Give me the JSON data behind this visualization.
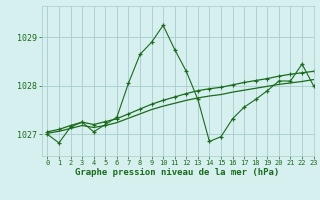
{
  "title": "Graphe pression niveau de la mer (hPa)",
  "bg_color": "#d6f0f0",
  "grid_color": "#a8cccc",
  "line_color": "#1a6b1a",
  "xlim": [
    -0.5,
    23
  ],
  "ylim": [
    1026.55,
    1029.65
  ],
  "yticks": [
    1027,
    1028,
    1029
  ],
  "xticks": [
    0,
    1,
    2,
    3,
    4,
    5,
    6,
    7,
    8,
    9,
    10,
    11,
    12,
    13,
    14,
    15,
    16,
    17,
    18,
    19,
    20,
    21,
    22,
    23
  ],
  "s1_x": [
    0,
    1,
    2,
    3,
    4,
    5,
    6,
    7,
    8,
    9,
    10,
    11,
    12,
    13,
    14,
    15,
    16,
    17,
    18,
    19,
    20,
    21,
    22,
    23
  ],
  "s1_y": [
    1027.0,
    1026.82,
    1027.15,
    1027.25,
    1027.05,
    1027.2,
    1027.35,
    1028.05,
    1028.65,
    1028.9,
    1029.25,
    1028.75,
    1028.3,
    1027.72,
    1026.85,
    1026.95,
    1027.32,
    1027.56,
    1027.72,
    1027.9,
    1028.1,
    1028.1,
    1028.45,
    1028.0
  ],
  "s2_x": [
    0,
    1,
    2,
    3,
    4,
    5,
    6,
    7,
    8,
    9,
    10,
    11,
    12,
    13,
    14,
    15,
    16,
    17,
    18,
    19,
    20,
    21,
    22,
    23
  ],
  "s2_y": [
    1027.05,
    1027.1,
    1027.18,
    1027.25,
    1027.2,
    1027.26,
    1027.32,
    1027.42,
    1027.52,
    1027.62,
    1027.7,
    1027.77,
    1027.84,
    1027.9,
    1027.94,
    1027.97,
    1028.02,
    1028.07,
    1028.11,
    1028.15,
    1028.2,
    1028.24,
    1028.27,
    1028.3
  ],
  "s3_x": [
    0,
    1,
    2,
    3,
    4,
    5,
    6,
    7,
    8,
    9,
    10,
    11,
    12,
    13,
    14,
    15,
    16,
    17,
    18,
    19,
    20,
    21,
    22,
    23
  ],
  "s3_y": [
    1027.02,
    1027.06,
    1027.12,
    1027.18,
    1027.14,
    1027.18,
    1027.24,
    1027.33,
    1027.42,
    1027.51,
    1027.58,
    1027.64,
    1027.7,
    1027.75,
    1027.79,
    1027.82,
    1027.87,
    1027.91,
    1027.95,
    1027.99,
    1028.03,
    1028.06,
    1028.09,
    1028.13
  ]
}
